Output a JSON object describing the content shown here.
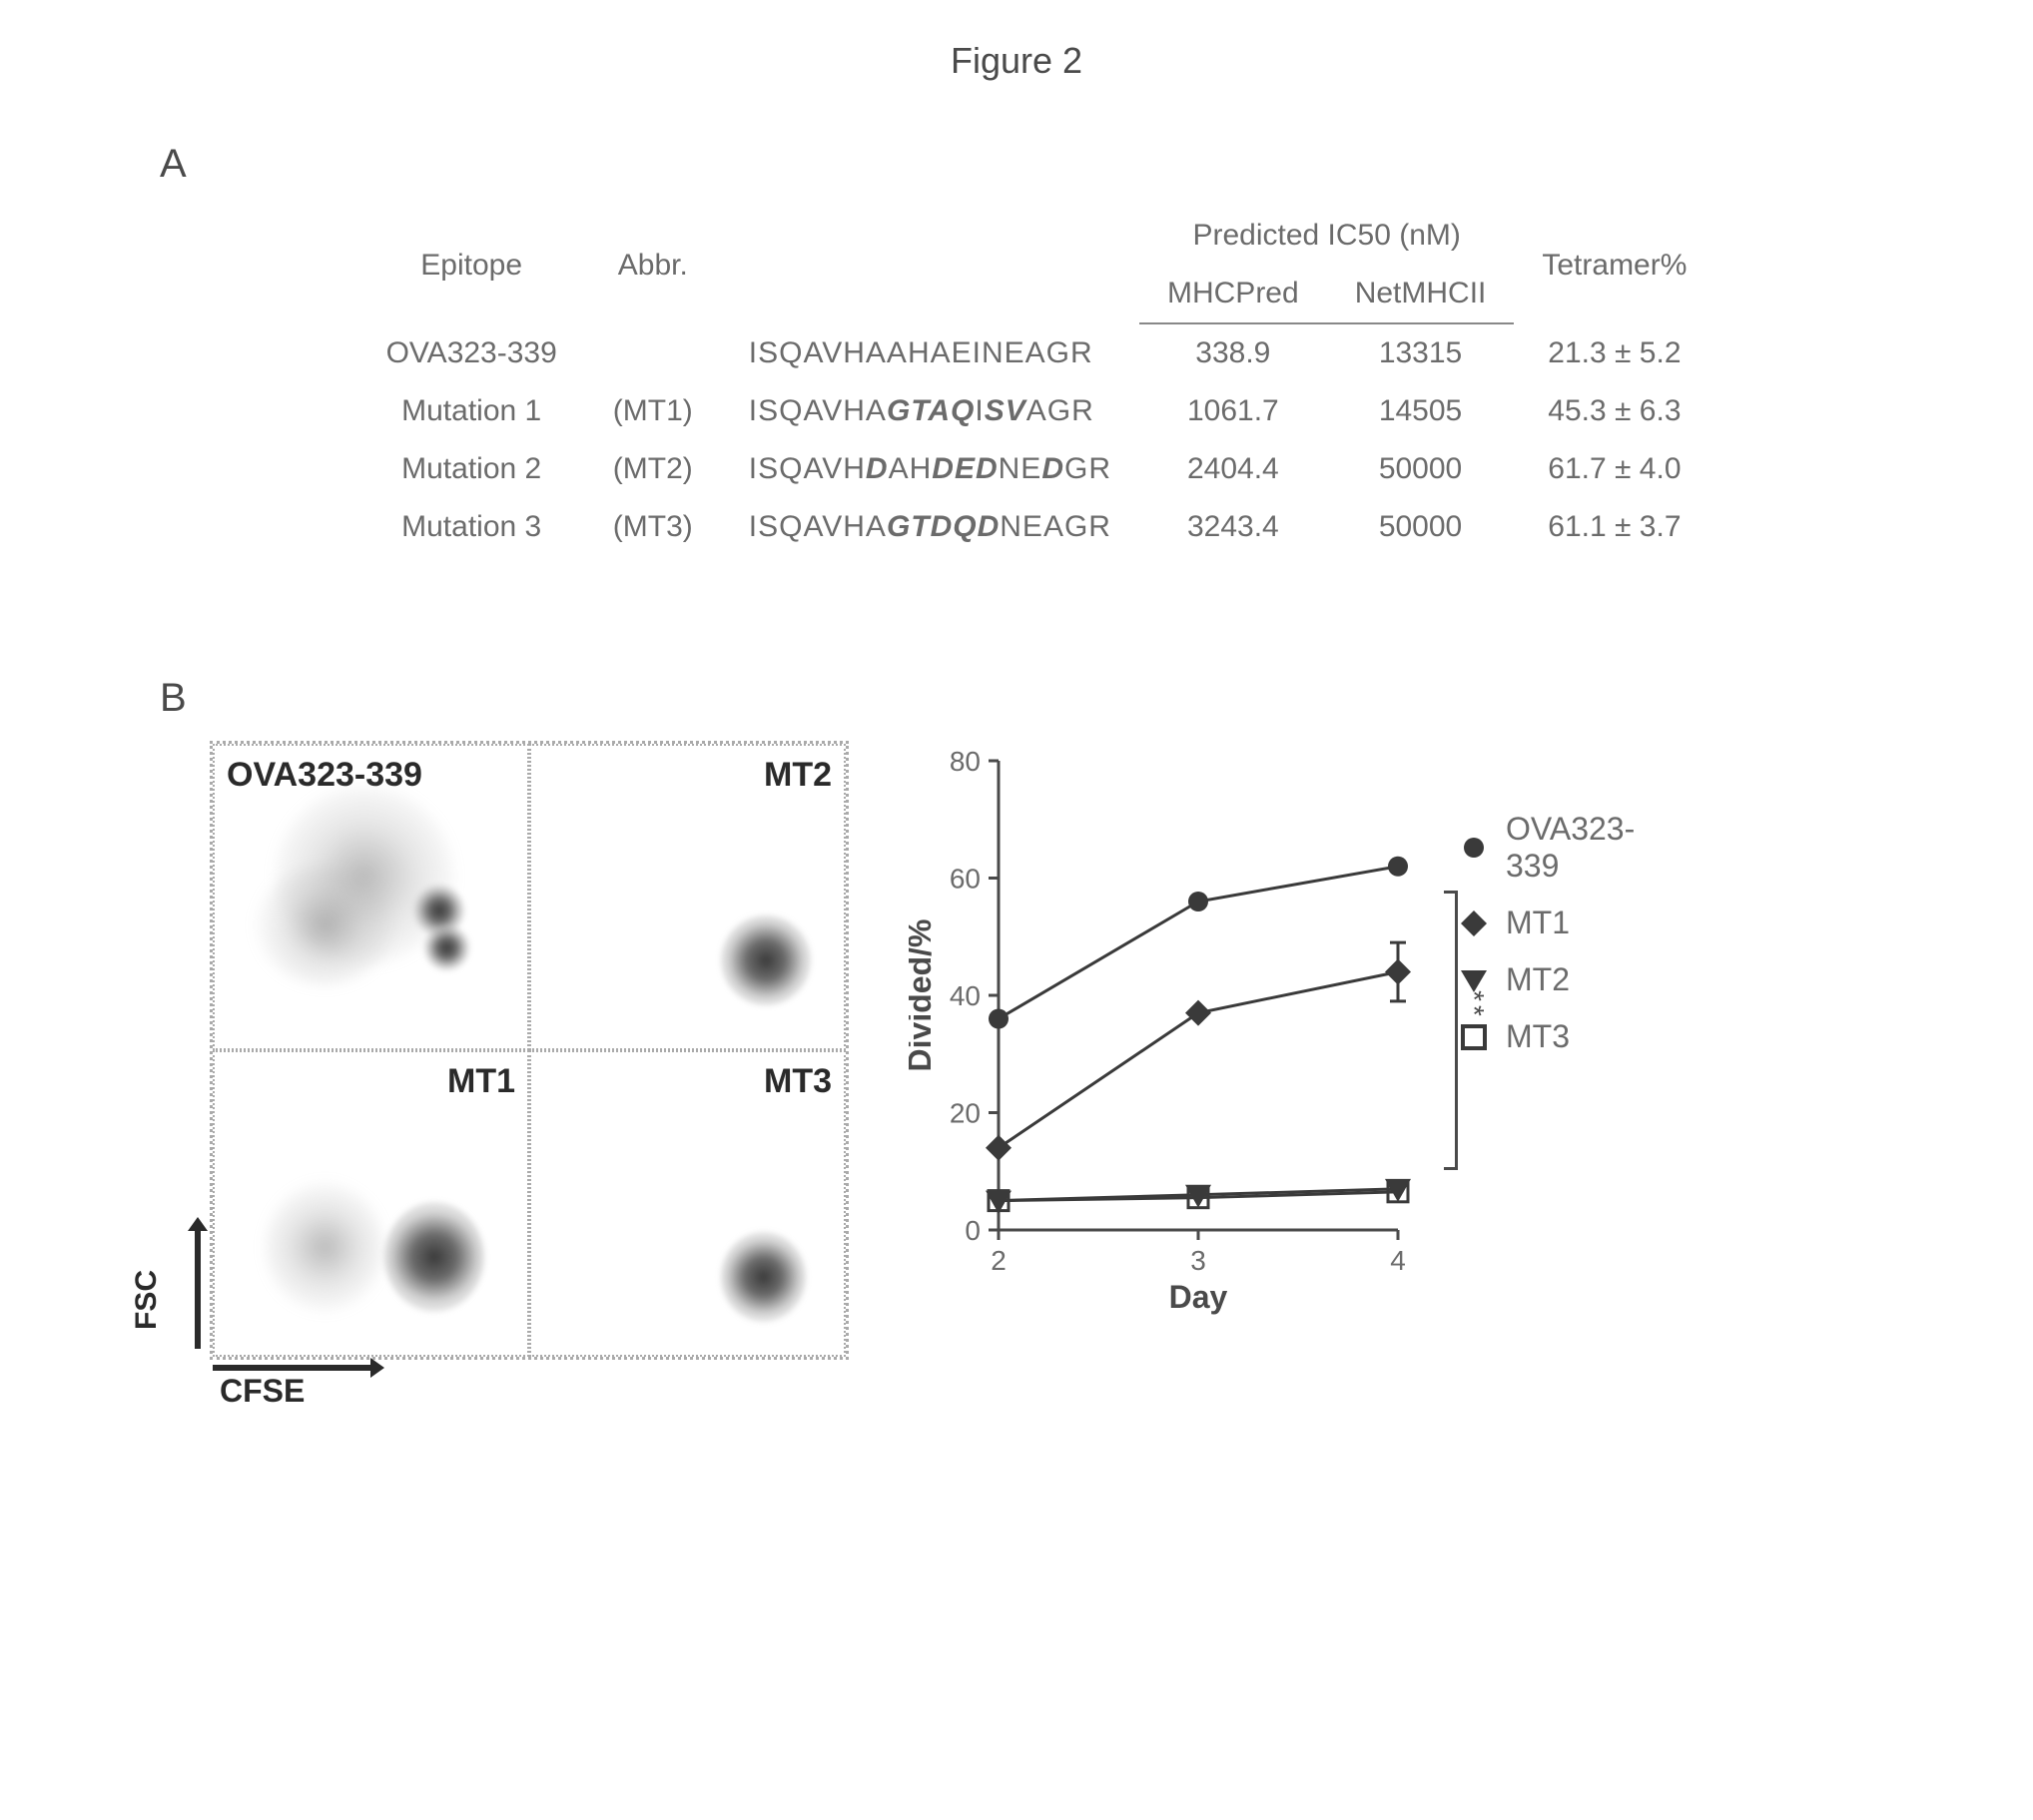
{
  "figure_title": "Figure 2",
  "panel_a": {
    "label": "A",
    "headers": {
      "epitope": "Epitope",
      "abbr": "Abbr.",
      "ic50_group": "Predicted IC50 (nM)",
      "mhcpred": "MHCPred",
      "netmhcii": "NetMHCII",
      "tetramer": "Tetramer%"
    },
    "rows": [
      {
        "epitope": "OVA323-339",
        "abbr": "",
        "seq_pre": "ISQAVHAAHAEINEAGR",
        "seq_mut": "",
        "seq_post": "",
        "mhcpred": "338.9",
        "netmhcii": "13315",
        "tetramer": "21.3 ± 5.2"
      },
      {
        "epitope": "Mutation 1",
        "abbr": "(MT1)",
        "seq_pre": "ISQAVHA",
        "seq_mut": "GTAQ",
        "seq_mid": "I",
        "seq_mut2": "SV",
        "seq_post": "AGR",
        "mhcpred": "1061.7",
        "netmhcii": "14505",
        "tetramer": "45.3 ± 6.3"
      },
      {
        "epitope": "Mutation 2",
        "abbr": "(MT2)",
        "seq_pre": "ISQAVH",
        "seq_mut": "D",
        "seq_mid": "AH",
        "seq_mut2": "DED",
        "seq_mid2": "NE",
        "seq_mut3": "D",
        "seq_post": "GR",
        "mhcpred": "2404.4",
        "netmhcii": "50000",
        "tetramer": "61.7 ± 4.0"
      },
      {
        "epitope": "Mutation 3",
        "abbr": "(MT3)",
        "seq_pre": "ISQAVHA",
        "seq_mut": "GTDQD",
        "seq_post": "NEAGR",
        "mhcpred": "3243.4",
        "netmhcii": "50000",
        "tetramer": "61.1 ± 3.7"
      }
    ]
  },
  "panel_b": {
    "label": "B",
    "flow": {
      "cells": [
        {
          "label": "OVA323-339",
          "pos": "tl"
        },
        {
          "label": "MT2",
          "pos": "tr"
        },
        {
          "label": "MT1",
          "pos": "tr"
        },
        {
          "label": "MT3",
          "pos": "tr"
        }
      ],
      "y_axis": "FSC",
      "x_axis": "CFSE"
    },
    "chart": {
      "type": "line",
      "x_label": "Day",
      "y_label": "Divided/%",
      "xlim": [
        2,
        4
      ],
      "ylim": [
        0,
        80
      ],
      "ytick_step": 20,
      "x_ticks": [
        2,
        3,
        4
      ],
      "background_color": "#ffffff",
      "axis_color": "#4a4a4a",
      "tick_fontsize": 28,
      "label_fontsize": 32,
      "line_width": 3,
      "marker_size": 10,
      "series": [
        {
          "name": "OVA323-339",
          "marker": "circle",
          "color": "#3a3a3a",
          "values": [
            [
              2,
              36
            ],
            [
              3,
              56
            ],
            [
              4,
              62
            ]
          ]
        },
        {
          "name": "MT1",
          "marker": "diamond",
          "color": "#3a3a3a",
          "values": [
            [
              2,
              14
            ],
            [
              3,
              37
            ],
            [
              4,
              44
            ]
          ],
          "error": [
            [
              4,
              5
            ]
          ]
        },
        {
          "name": "MT2",
          "marker": "triangle-down",
          "color": "#3a3a3a",
          "values": [
            [
              2,
              5
            ],
            [
              3,
              6
            ],
            [
              4,
              7
            ]
          ]
        },
        {
          "name": "MT3",
          "marker": "square-open",
          "color": "#3a3a3a",
          "values": [
            [
              2,
              5
            ],
            [
              3,
              5.5
            ],
            [
              4,
              6.5
            ]
          ]
        }
      ],
      "significance": "**"
    },
    "legend": [
      {
        "marker": "circle",
        "label": "OVA323-339"
      },
      {
        "marker": "diamond",
        "label": "MT1"
      },
      {
        "marker": "triangle-down",
        "label": "MT2"
      },
      {
        "marker": "square-open",
        "label": "MT3"
      }
    ]
  }
}
